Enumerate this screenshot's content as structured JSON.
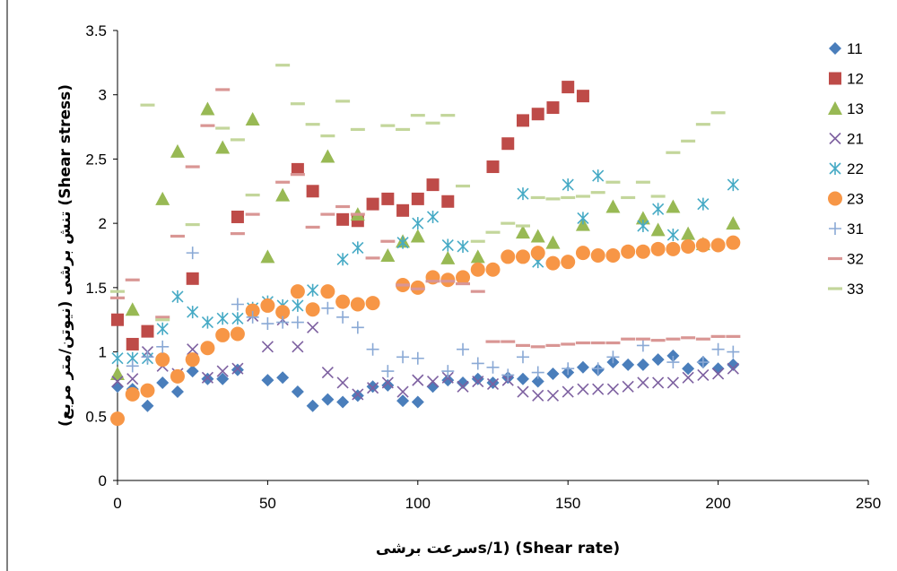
{
  "chart_data": {
    "type": "scatter",
    "xlabel": "سرعت برشیs/1) (Shear rate)",
    "ylabel": "تنش برشی (نیوتن/متر مربع) (Shear stress)",
    "xlim": [
      0,
      250
    ],
    "ylim": [
      0,
      3.5
    ],
    "x_ticks": [
      "0",
      "50",
      "100",
      "150",
      "200",
      "250"
    ],
    "y_ticks": [
      "0",
      "0.5",
      "1",
      "1.5",
      "2",
      "2.5",
      "3",
      "3.5"
    ],
    "grid": false,
    "legend_position": "right",
    "series": [
      {
        "name": "11",
        "marker": "diamond",
        "color": "#4a7ebb",
        "x": [
          0,
          5,
          10,
          15,
          20,
          25,
          30,
          35,
          40,
          50,
          55,
          60,
          65,
          70,
          75,
          80,
          85,
          90,
          95,
          100,
          105,
          110,
          115,
          120,
          125,
          130,
          135,
          140,
          145,
          150,
          155,
          160,
          165,
          170,
          175,
          180,
          185,
          190,
          195,
          200,
          205
        ],
        "y": [
          0.73,
          0.71,
          0.58,
          0.76,
          0.69,
          0.85,
          0.79,
          0.79,
          0.86,
          0.78,
          0.8,
          0.69,
          0.58,
          0.63,
          0.61,
          0.66,
          0.73,
          0.74,
          0.62,
          0.61,
          0.73,
          0.78,
          0.76,
          0.79,
          0.76,
          0.8,
          0.79,
          0.77,
          0.83,
          0.84,
          0.88,
          0.86,
          0.92,
          0.9,
          0.9,
          0.94,
          0.97,
          0.87,
          0.92,
          0.87,
          0.9
        ]
      },
      {
        "name": "12",
        "marker": "square",
        "color": "#be4b48",
        "x": [
          0,
          5,
          10,
          25,
          40,
          60,
          65,
          75,
          80,
          85,
          90,
          95,
          100,
          105,
          110,
          125,
          130,
          135,
          140,
          145,
          150,
          155
        ],
        "y": [
          1.25,
          1.06,
          1.16,
          1.57,
          2.05,
          2.42,
          2.25,
          2.03,
          2.02,
          2.15,
          2.19,
          2.1,
          2.19,
          2.3,
          2.17,
          2.44,
          2.62,
          2.8,
          2.85,
          2.9,
          3.06,
          2.99
        ]
      },
      {
        "name": "13",
        "marker": "triangle",
        "color": "#98b954",
        "x": [
          0,
          5,
          15,
          20,
          30,
          35,
          45,
          50,
          55,
          70,
          80,
          90,
          95,
          100,
          110,
          120,
          135,
          140,
          145,
          155,
          165,
          175,
          180,
          185,
          190,
          195,
          205
        ],
        "y": [
          0.83,
          1.33,
          2.19,
          2.56,
          2.89,
          2.59,
          2.81,
          1.74,
          2.22,
          2.52,
          2.07,
          1.75,
          1.86,
          1.9,
          1.73,
          1.74,
          1.93,
          1.9,
          1.85,
          1.99,
          2.13,
          2.04,
          1.95,
          2.13,
          1.92,
          1.84,
          2.0
        ]
      },
      {
        "name": "21",
        "marker": "x",
        "color": "#7d60a0",
        "x": [
          0,
          5,
          10,
          15,
          20,
          25,
          30,
          35,
          40,
          45,
          50,
          55,
          60,
          65,
          70,
          75,
          80,
          85,
          90,
          95,
          100,
          105,
          110,
          115,
          120,
          125,
          130,
          135,
          140,
          145,
          150,
          155,
          160,
          165,
          170,
          175,
          180,
          185,
          190,
          195,
          200,
          205
        ],
        "y": [
          0.77,
          0.79,
          1.0,
          0.89,
          0.83,
          1.02,
          0.8,
          0.85,
          0.87,
          1.28,
          1.04,
          1.25,
          1.04,
          1.19,
          0.84,
          0.76,
          0.67,
          0.72,
          0.76,
          0.69,
          0.78,
          0.77,
          0.8,
          0.73,
          0.77,
          0.75,
          0.78,
          0.69,
          0.66,
          0.66,
          0.69,
          0.71,
          0.71,
          0.71,
          0.73,
          0.76,
          0.76,
          0.76,
          0.8,
          0.82,
          0.83,
          0.87
        ]
      },
      {
        "name": "22",
        "marker": "asterisk",
        "color": "#46aac5",
        "x": [
          0,
          5,
          10,
          15,
          20,
          25,
          30,
          35,
          40,
          45,
          50,
          55,
          60,
          65,
          75,
          80,
          95,
          100,
          105,
          110,
          115,
          135,
          140,
          150,
          155,
          160,
          175,
          180,
          185,
          195,
          205
        ],
        "y": [
          0.95,
          0.95,
          0.95,
          1.18,
          1.43,
          1.31,
          1.23,
          1.26,
          1.26,
          1.34,
          1.39,
          1.36,
          1.36,
          1.48,
          1.72,
          1.81,
          1.85,
          2.0,
          2.05,
          1.83,
          1.82,
          2.23,
          1.7,
          2.3,
          2.04,
          2.37,
          1.98,
          2.11,
          1.91,
          2.15,
          2.3
        ]
      },
      {
        "name": "23",
        "marker": "circle",
        "color": "#f79646",
        "x": [
          0,
          5,
          10,
          15,
          20,
          25,
          30,
          35,
          40,
          45,
          50,
          55,
          60,
          65,
          70,
          75,
          80,
          85,
          95,
          100,
          105,
          110,
          115,
          120,
          125,
          130,
          135,
          140,
          145,
          150,
          155,
          160,
          165,
          170,
          175,
          180,
          185,
          190,
          195,
          200,
          205
        ],
        "y": [
          0.48,
          0.67,
          0.7,
          0.94,
          0.81,
          0.94,
          1.03,
          1.13,
          1.14,
          1.32,
          1.36,
          1.31,
          1.47,
          1.33,
          1.47,
          1.39,
          1.37,
          1.38,
          1.52,
          1.5,
          1.58,
          1.56,
          1.58,
          1.64,
          1.64,
          1.74,
          1.74,
          1.77,
          1.69,
          1.7,
          1.77,
          1.75,
          1.75,
          1.78,
          1.78,
          1.8,
          1.8,
          1.82,
          1.83,
          1.83,
          1.85
        ]
      },
      {
        "name": "31",
        "marker": "plus",
        "color": "#8aa9d5",
        "x": [
          5,
          10,
          15,
          25,
          40,
          45,
          50,
          55,
          60,
          70,
          75,
          80,
          85,
          90,
          95,
          100,
          110,
          115,
          120,
          125,
          130,
          135,
          140,
          150,
          160,
          165,
          175,
          185,
          195,
          200,
          205
        ],
        "y": [
          0.89,
          0.96,
          1.04,
          1.77,
          1.37,
          1.27,
          1.22,
          1.23,
          1.23,
          1.34,
          1.27,
          1.19,
          1.02,
          0.85,
          0.96,
          0.95,
          0.85,
          1.02,
          0.91,
          0.88,
          0.82,
          0.96,
          0.84,
          0.87,
          0.87,
          0.96,
          1.05,
          0.92,
          0.92,
          1.02,
          1.0
        ]
      },
      {
        "name": "32",
        "marker": "dash",
        "color": "#d99694",
        "x": [
          0,
          5,
          15,
          20,
          25,
          30,
          35,
          40,
          45,
          55,
          60,
          65,
          70,
          75,
          80,
          85,
          90,
          95,
          100,
          105,
          110,
          115,
          120,
          125,
          130,
          135,
          140,
          145,
          150,
          155,
          160,
          165,
          170,
          175,
          180,
          185,
          190,
          195,
          200,
          205
        ],
        "y": [
          1.42,
          1.56,
          1.27,
          1.9,
          2.44,
          2.76,
          3.04,
          1.92,
          2.07,
          2.32,
          2.38,
          1.97,
          2.07,
          2.13,
          2.07,
          1.73,
          1.86,
          1.52,
          1.49,
          1.55,
          1.55,
          1.53,
          1.47,
          1.08,
          1.08,
          1.05,
          1.04,
          1.05,
          1.06,
          1.07,
          1.07,
          1.07,
          1.1,
          1.1,
          1.09,
          1.1,
          1.11,
          1.1,
          1.12,
          1.12
        ]
      },
      {
        "name": "33",
        "marker": "dash",
        "color": "#c3d69b",
        "x": [
          0,
          10,
          15,
          25,
          35,
          40,
          45,
          55,
          60,
          65,
          70,
          75,
          80,
          90,
          95,
          100,
          105,
          110,
          115,
          120,
          125,
          130,
          135,
          140,
          145,
          150,
          155,
          160,
          165,
          170,
          175,
          180,
          185,
          190,
          195,
          200
        ],
        "y": [
          1.47,
          2.92,
          1.25,
          1.99,
          2.74,
          2.65,
          2.22,
          3.23,
          2.93,
          2.77,
          2.68,
          2.95,
          2.73,
          2.76,
          2.73,
          2.84,
          2.78,
          2.84,
          2.29,
          1.86,
          1.93,
          2.0,
          1.98,
          2.2,
          2.19,
          2.2,
          2.21,
          2.24,
          2.32,
          2.2,
          2.32,
          2.21,
          2.55,
          2.64,
          2.77,
          2.86
        ]
      }
    ]
  }
}
